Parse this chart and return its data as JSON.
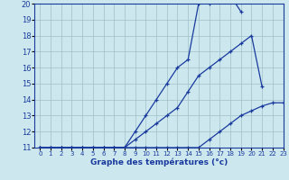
{
  "xlabel": "Graphe des températures (°c)",
  "x": [
    0,
    1,
    2,
    3,
    4,
    5,
    6,
    7,
    8,
    9,
    10,
    11,
    12,
    13,
    14,
    15,
    16,
    17,
    18,
    19,
    20,
    21,
    22,
    23
  ],
  "line1": [
    11,
    11,
    11,
    11,
    11,
    11,
    11,
    11,
    11,
    11,
    11,
    11,
    11,
    11,
    11,
    11,
    11.5,
    12,
    12.5,
    13,
    13.3,
    13.6,
    13.8,
    13.8
  ],
  "line2": [
    11,
    11,
    11,
    11,
    11,
    11,
    11,
    11,
    11,
    11.5,
    12,
    12.5,
    13,
    13.5,
    14.5,
    15.5,
    16,
    16.5,
    17,
    17.5,
    18,
    14.8,
    null,
    null
  ],
  "line3": [
    11,
    11,
    11,
    11,
    11,
    11,
    11,
    11,
    11,
    12,
    13,
    14,
    15,
    16,
    16.5,
    20,
    20,
    20.2,
    20.5,
    19.5,
    null,
    null,
    null,
    null
  ],
  "bg_color": "#cce8ee",
  "grid_color": "#9fbfc8",
  "line_color": "#1a3a9e",
  "ylim": [
    11,
    20
  ],
  "xlim": [
    -0.5,
    23
  ],
  "yticks": [
    11,
    12,
    13,
    14,
    15,
    16,
    17,
    18,
    19,
    20
  ],
  "xticks": [
    0,
    1,
    2,
    3,
    4,
    5,
    6,
    7,
    8,
    9,
    10,
    11,
    12,
    13,
    14,
    15,
    16,
    17,
    18,
    19,
    20,
    21,
    22,
    23
  ],
  "xtick_labels": [
    "0",
    "1",
    "2",
    "3",
    "4",
    "5",
    "6",
    "7",
    "8",
    "9",
    "10",
    "11",
    "12",
    "13",
    "14",
    "15",
    "16",
    "17",
    "18",
    "19",
    "20",
    "21",
    "22",
    "23"
  ]
}
